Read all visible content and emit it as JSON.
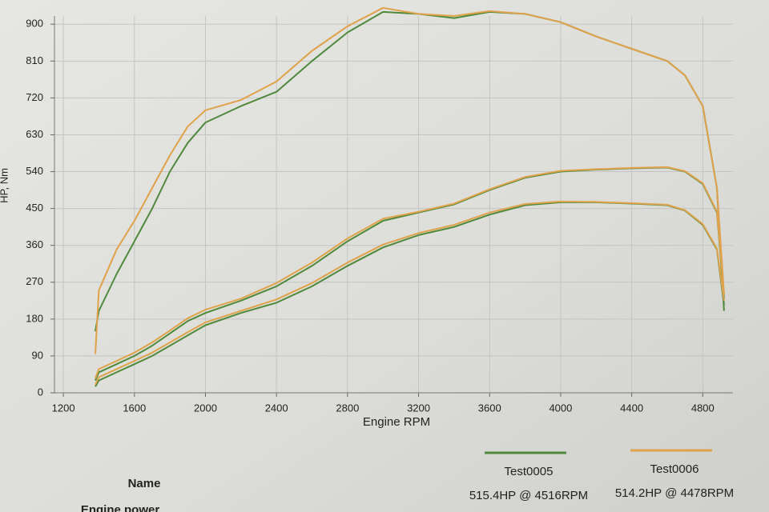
{
  "chart_data": {
    "type": "line",
    "y_label": "HP, Nm",
    "x_label": "Engine RPM",
    "xlim": [
      1150,
      4970
    ],
    "ylim": [
      0,
      920
    ],
    "xticks": [
      1200,
      1600,
      2000,
      2400,
      2800,
      3200,
      3600,
      4000,
      4400,
      4800
    ],
    "yticks": [
      0,
      90,
      180,
      270,
      360,
      450,
      540,
      630,
      720,
      810,
      900
    ],
    "grid": true,
    "x": [
      1380,
      1400,
      1500,
      1600,
      1700,
      1800,
      1900,
      2000,
      2200,
      2400,
      2600,
      2800,
      3000,
      3200,
      3400,
      3600,
      3800,
      4000,
      4200,
      4400,
      4600,
      4700,
      4800,
      4880,
      4920
    ],
    "series": [
      {
        "name": "Test0005",
        "color": "#4f8a3c",
        "summary": "515.4HP @ 4516RPM",
        "curves": [
          [
            150,
            200,
            290,
            370,
            450,
            540,
            610,
            660,
            700,
            735,
            810,
            880,
            930,
            925,
            915,
            930,
            925,
            905,
            870,
            840,
            810,
            775,
            700,
            500,
            200
          ],
          [
            30,
            50,
            70,
            90,
            115,
            145,
            175,
            195,
            225,
            260,
            310,
            370,
            420,
            440,
            460,
            495,
            525,
            540,
            545,
            548,
            550,
            540,
            510,
            440,
            230
          ],
          [
            15,
            30,
            50,
            70,
            90,
            115,
            140,
            165,
            195,
            220,
            260,
            310,
            355,
            385,
            405,
            435,
            458,
            465,
            465,
            462,
            458,
            445,
            410,
            350,
            215
          ]
        ]
      },
      {
        "name": "Test0006",
        "color": "#e0a24a",
        "summary": "514.2HP @ 4478RPM",
        "curves": [
          [
            95,
            250,
            350,
            420,
            500,
            580,
            650,
            690,
            715,
            760,
            835,
            895,
            940,
            925,
            920,
            932,
            925,
            905,
            870,
            840,
            810,
            775,
            700,
            500,
            240
          ],
          [
            35,
            58,
            78,
            98,
            123,
            152,
            182,
            203,
            230,
            268,
            318,
            377,
            425,
            442,
            462,
            497,
            527,
            542,
            546,
            549,
            551,
            541,
            512,
            442,
            240
          ],
          [
            20,
            38,
            58,
            78,
            98,
            123,
            148,
            172,
            200,
            228,
            268,
            318,
            362,
            390,
            410,
            440,
            461,
            467,
            466,
            463,
            459,
            446,
            412,
            352,
            225
          ]
        ]
      }
    ],
    "table": {
      "header": "Name",
      "row_label": "Engine power"
    }
  }
}
